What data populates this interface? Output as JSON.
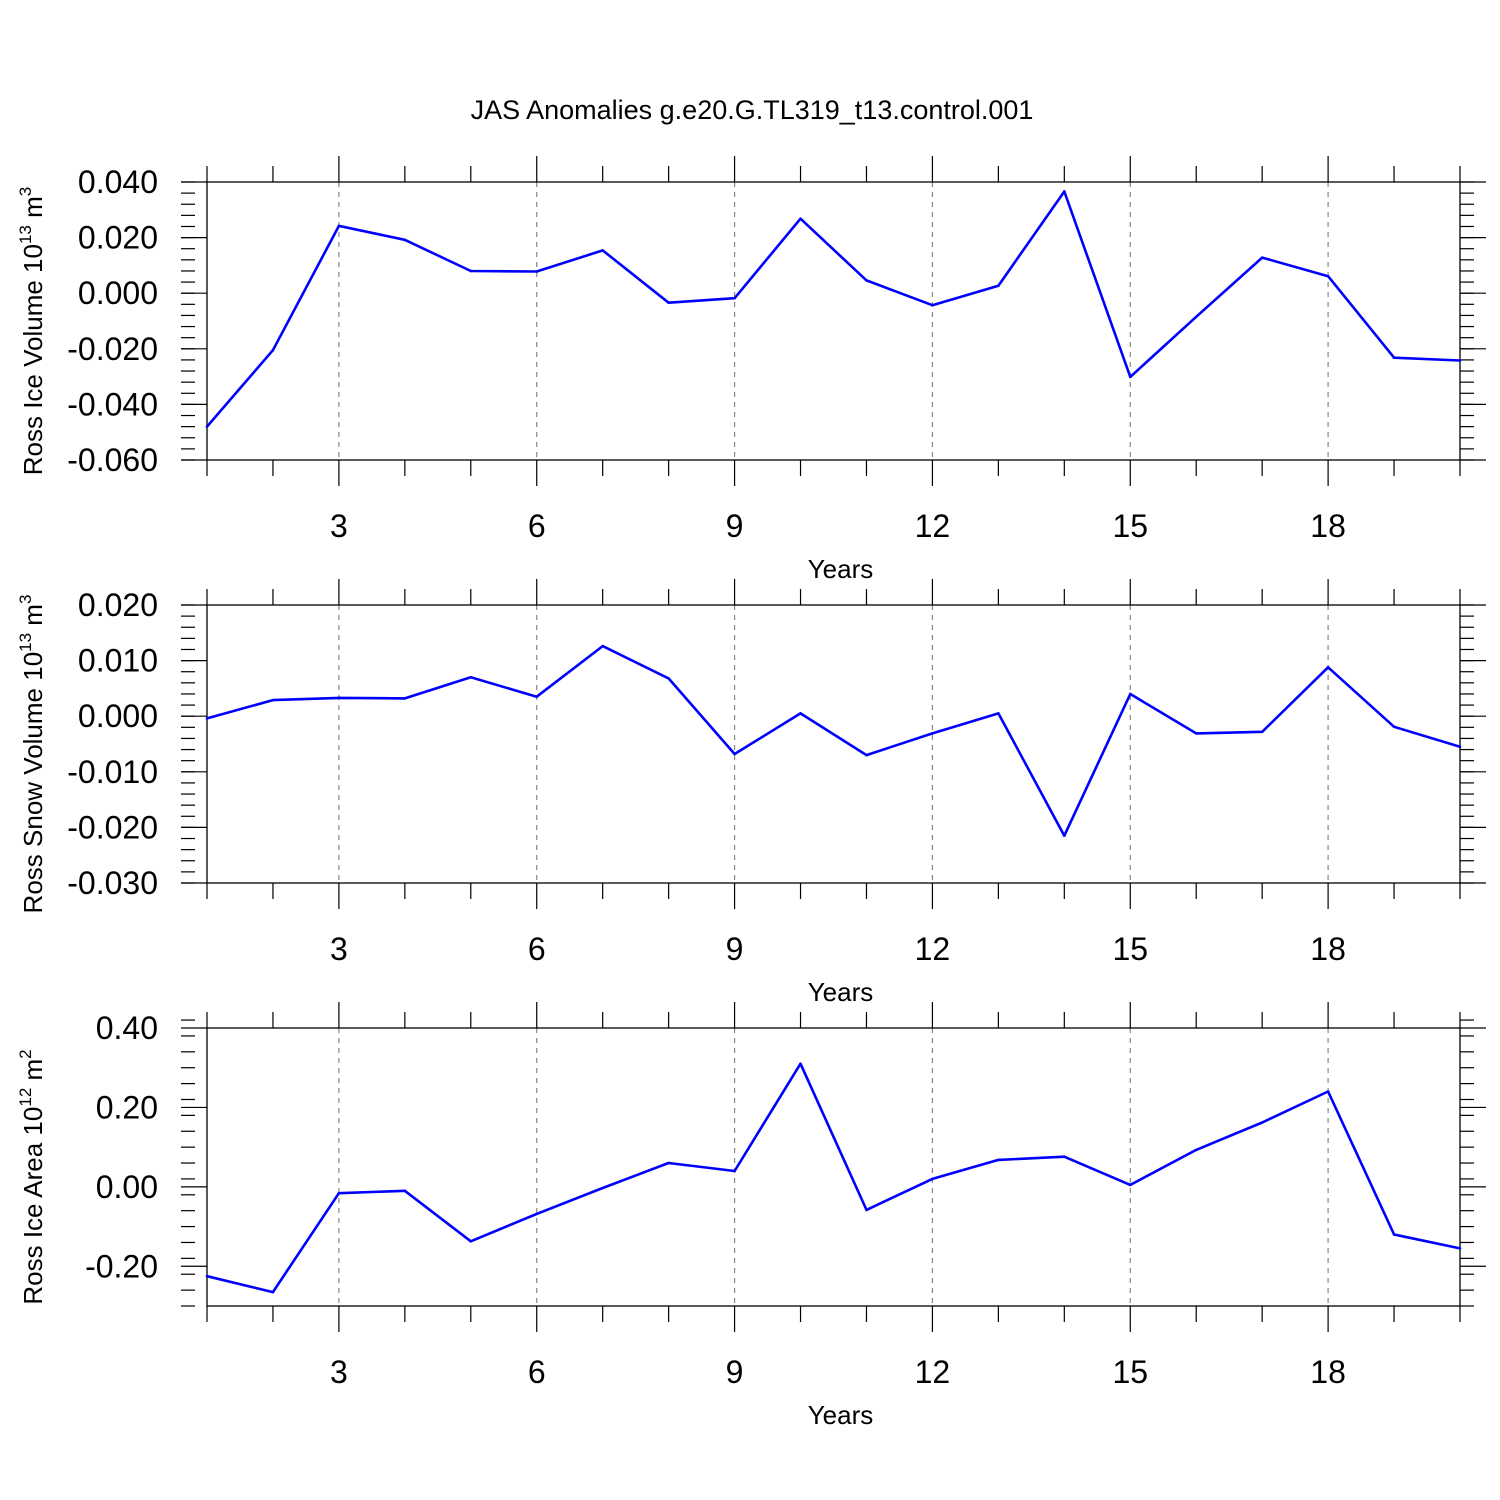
{
  "title": "JAS Anomalies g.e20.G.TL319_t13.control.001",
  "line_color": "#0000ff",
  "chart_data": [
    {
      "type": "line",
      "ylabel": "Ross Ice Volume 10",
      "ylabel_exp": "13",
      "ylabel_unit": "m",
      "ylabel_unit_exp": "3",
      "xlabel": "Years",
      "xlim": [
        1,
        20
      ],
      "ylim": [
        -0.06,
        0.04
      ],
      "x_ticks": [
        3,
        6,
        9,
        12,
        15,
        18
      ],
      "x_tick_labels": [
        "3",
        "6",
        "9",
        "12",
        "15",
        "18"
      ],
      "y_ticks": [
        -0.06,
        -0.04,
        -0.02,
        0.0,
        0.02,
        0.04
      ],
      "y_tick_labels": [
        "-0.060",
        "-0.040",
        "-0.020",
        "0.000",
        "0.020",
        "0.040"
      ],
      "y_minor_step": 0.004,
      "x": [
        1,
        2,
        3,
        4,
        5,
        6,
        7,
        8,
        9,
        10,
        11,
        12,
        13,
        14,
        15,
        16,
        17,
        18,
        19,
        20
      ],
      "values": [
        -0.048,
        -0.0205,
        0.0242,
        0.0192,
        0.008,
        0.0078,
        0.0154,
        -0.0034,
        -0.0018,
        0.0268,
        0.0046,
        -0.0043,
        0.0027,
        0.0366,
        -0.0301,
        -0.0085,
        0.0128,
        0.0061,
        -0.0232,
        -0.0242
      ]
    },
    {
      "type": "line",
      "ylabel": "Ross Snow Volume 10",
      "ylabel_exp": "13",
      "ylabel_unit": "m",
      "ylabel_unit_exp": "3",
      "xlabel": "Years",
      "xlim": [
        1,
        20
      ],
      "ylim": [
        -0.03,
        0.02
      ],
      "x_ticks": [
        3,
        6,
        9,
        12,
        15,
        18
      ],
      "x_tick_labels": [
        "3",
        "6",
        "9",
        "12",
        "15",
        "18"
      ],
      "y_ticks": [
        -0.03,
        -0.02,
        -0.01,
        0.0,
        0.01,
        0.02
      ],
      "y_tick_labels": [
        "-0.030",
        "-0.020",
        "-0.010",
        "0.000",
        "0.010",
        "0.020"
      ],
      "y_minor_step": 0.002,
      "x": [
        1,
        2,
        3,
        4,
        5,
        6,
        7,
        8,
        9,
        10,
        11,
        12,
        13,
        14,
        15,
        16,
        17,
        18,
        19,
        20
      ],
      "values": [
        -0.0004,
        0.0029,
        0.0033,
        0.0032,
        0.007,
        0.0035,
        0.0126,
        0.0068,
        -0.0068,
        0.0005,
        -0.007,
        -0.0031,
        0.0005,
        -0.0215,
        0.004,
        -0.0031,
        -0.0028,
        0.0088,
        -0.0019,
        -0.0055
      ]
    },
    {
      "type": "line",
      "ylabel": "Ross Ice Area 10",
      "ylabel_exp": "12",
      "ylabel_unit": "m",
      "ylabel_unit_exp": "2",
      "xlabel": "Years",
      "xlim": [
        1,
        20
      ],
      "ylim": [
        -0.3,
        0.4
      ],
      "x_ticks": [
        3,
        6,
        9,
        12,
        15,
        18
      ],
      "x_tick_labels": [
        "3",
        "6",
        "9",
        "12",
        "15",
        "18"
      ],
      "y_ticks": [
        -0.2,
        0.0,
        0.2,
        0.4
      ],
      "y_tick_labels": [
        "-0.20",
        "0.00",
        "0.20",
        "0.40"
      ],
      "y_minor_step": 0.04,
      "x": [
        1,
        2,
        3,
        4,
        5,
        6,
        7,
        8,
        9,
        10,
        11,
        12,
        13,
        14,
        15,
        16,
        17,
        18,
        19,
        20
      ],
      "values": [
        -0.225,
        -0.265,
        -0.016,
        -0.01,
        -0.137,
        -0.068,
        -0.003,
        0.06,
        0.04,
        0.31,
        -0.058,
        0.02,
        0.068,
        0.076,
        0.005,
        0.093,
        0.162,
        0.24,
        -0.12,
        -0.155
      ]
    }
  ]
}
